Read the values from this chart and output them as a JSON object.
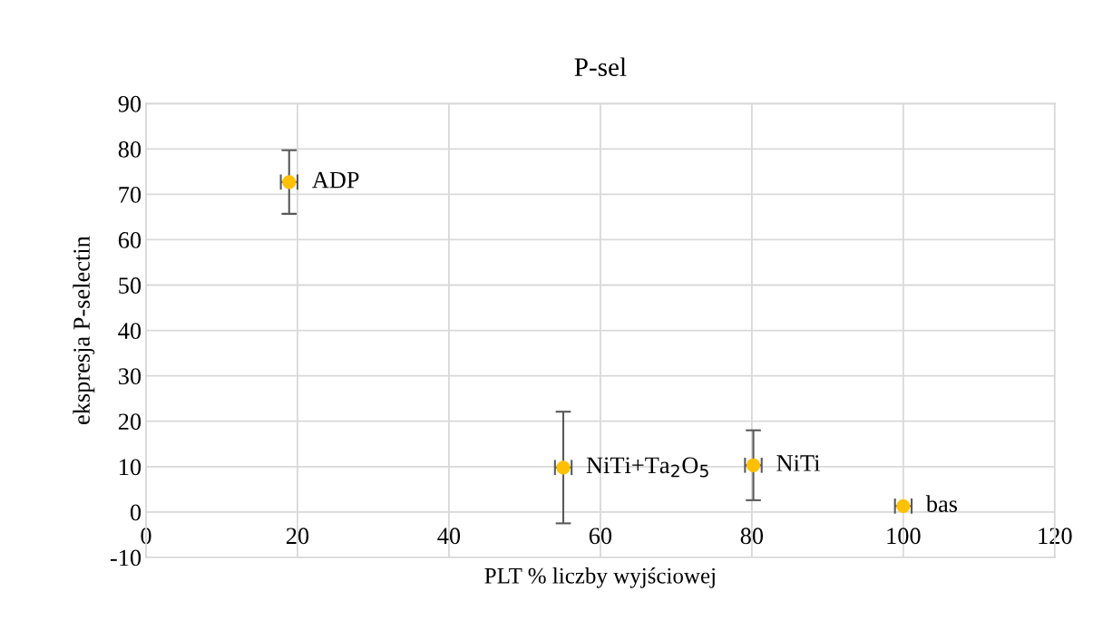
{
  "chart_data": {
    "type": "scatter",
    "title": "P-sel",
    "xlabel": "PLT % liczby wyjściowej",
    "ylabel": "ekspresja P-selectin",
    "x": [
      18.9,
      55.1,
      80.2,
      100.0
    ],
    "values": [
      72.7,
      9.8,
      10.3,
      1.3
    ],
    "errors": [
      7.0,
      12.3,
      7.7,
      null
    ],
    "xerrors": [
      1.1,
      1.1,
      1.1,
      1.1
    ],
    "color": "#ffc000",
    "marker": "circle",
    "xlim": [
      0,
      120
    ],
    "xticks": [
      0,
      20,
      40,
      60,
      80,
      100,
      120
    ],
    "ylim": [
      -10,
      90
    ],
    "yticks": [
      -10,
      0,
      10,
      20,
      30,
      40,
      50,
      60,
      70,
      80,
      90
    ],
    "grid": true,
    "annotations": [
      {
        "text": "ADP",
        "x": 18.9,
        "y": 72.7
      },
      {
        "text": "NiTi+Ta$_{2}$O$_{5}$",
        "x": 55.1,
        "y": 9.8
      },
      {
        "text": "NiTi",
        "x": 80.2,
        "y": 10.3
      },
      {
        "text": "bas",
        "x": 100.0,
        "y": 1.3
      }
    ]
  }
}
